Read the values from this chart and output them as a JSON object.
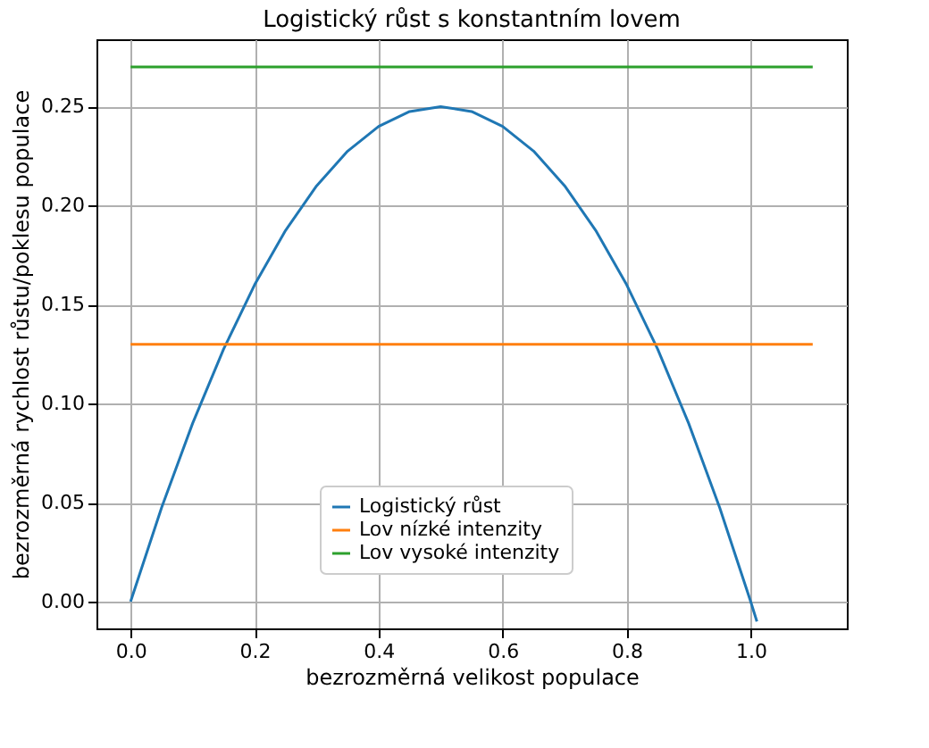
{
  "chart_data": {
    "type": "line",
    "title": "Logistický růst s konstantním lovem",
    "xlabel": "bezrozměrná velikost populace",
    "ylabel": "bezrozměrná rychlost růstu/poklesu populace",
    "xlim": [
      -0.055,
      1.155
    ],
    "ylim": [
      -0.0135,
      0.284
    ],
    "xticks": [
      {
        "value": 0,
        "label": "0.0"
      },
      {
        "value": 0.2,
        "label": "0.2"
      },
      {
        "value": 0.4,
        "label": "0.4"
      },
      {
        "value": 0.6,
        "label": "0.6"
      },
      {
        "value": 0.8,
        "label": "0.8"
      },
      {
        "value": 1,
        "label": "1.0"
      }
    ],
    "yticks": [
      {
        "value": 0,
        "label": "0.00"
      },
      {
        "value": 0.05,
        "label": "0.05"
      },
      {
        "value": 0.1,
        "label": "0.10"
      },
      {
        "value": 0.15,
        "label": "0.15"
      },
      {
        "value": 0.2,
        "label": "0.20"
      },
      {
        "value": 0.25,
        "label": "0.25"
      }
    ],
    "grid": true,
    "legend": "bottom",
    "line_style": "solid",
    "marker": "none",
    "series": [
      {
        "name": "Logistický růst",
        "color": "#1f77b4",
        "x": [
          0,
          0.05,
          0.1,
          0.15,
          0.2,
          0.25,
          0.3,
          0.35,
          0.4,
          0.45,
          0.5,
          0.55,
          0.6,
          0.65,
          0.7,
          0.75,
          0.8,
          0.85,
          0.9,
          0.95,
          1.0,
          1.01
        ],
        "values": [
          0,
          0.0475,
          0.09,
          0.1275,
          0.16,
          0.1875,
          0.21,
          0.2275,
          0.24,
          0.2475,
          0.25,
          0.2475,
          0.24,
          0.2275,
          0.21,
          0.1875,
          0.16,
          0.1275,
          0.09,
          0.0475,
          0,
          -0.01
        ]
      },
      {
        "name": "Lov nízké intenzity",
        "color": "#ff7f0e",
        "x": [
          0,
          1.1
        ],
        "values": [
          0.13,
          0.13
        ]
      },
      {
        "name": "Lov vysoké intenzity",
        "color": "#2ca02c",
        "x": [
          0,
          1.1
        ],
        "values": [
          0.27,
          0.27
        ]
      }
    ]
  }
}
